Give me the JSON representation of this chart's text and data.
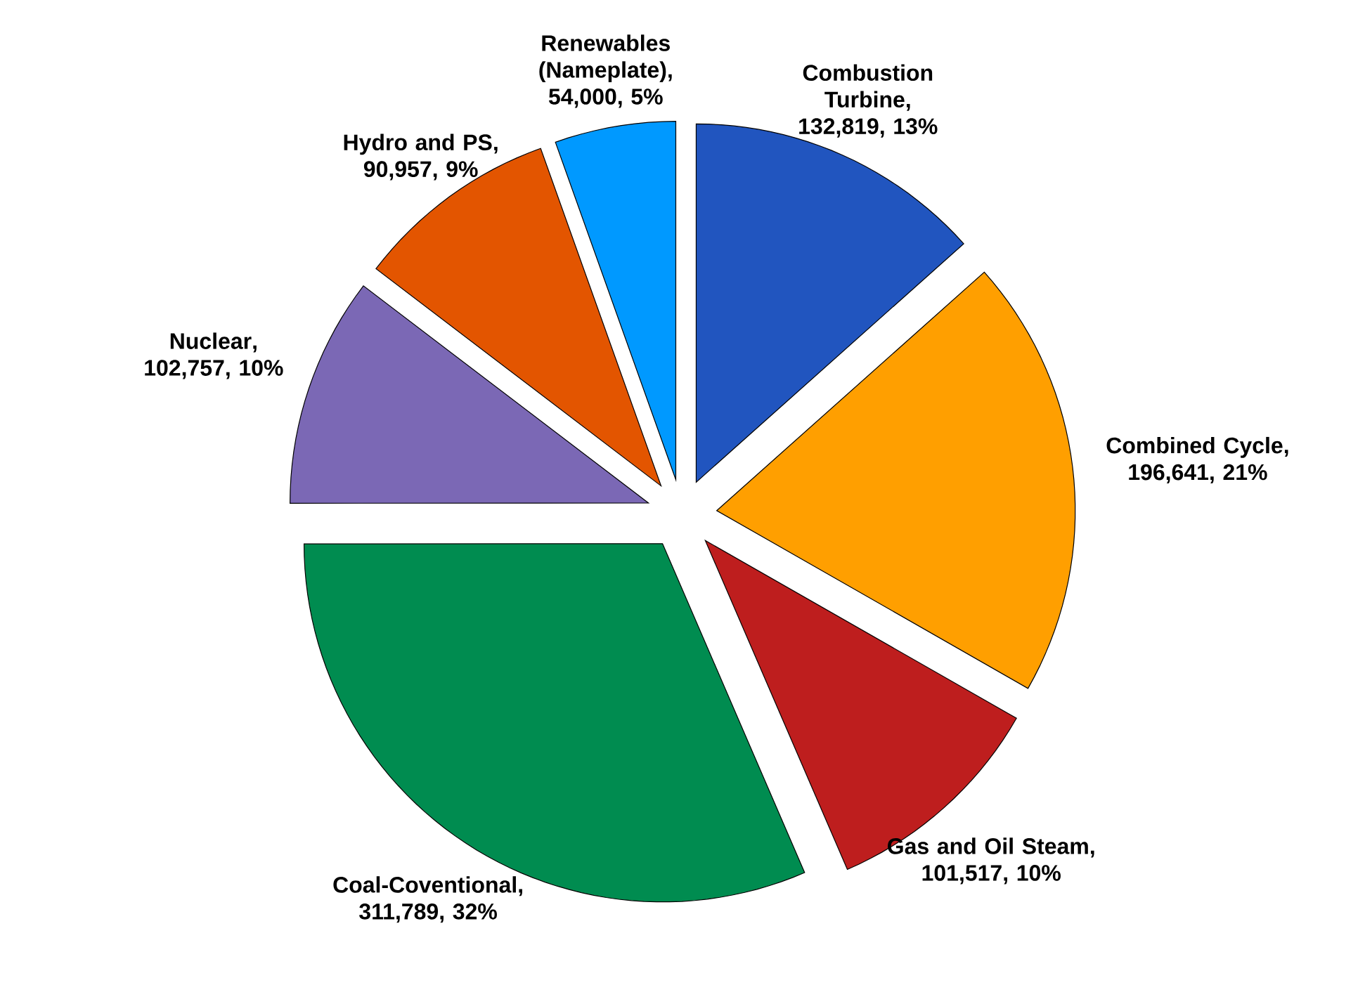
{
  "chart_data": {
    "type": "pie",
    "categories": [
      "Combustion Turbine",
      "Combined Cycle",
      "Gas and Oil Steam",
      "Coal-Coventional",
      "Nuclear",
      "Hydro and PS",
      "Renewables (Nameplate)"
    ],
    "values": [
      132819,
      196641,
      101517,
      311789,
      102757,
      90957,
      54000
    ],
    "value_labels": [
      ", 132,819, 13%",
      ", 196,641, 21%",
      ", 101,517, 10%",
      ", 311,789, 32%",
      ", 102,757, 10%",
      ", 90,957, 9%",
      ", 54,000, 5%"
    ],
    "colors": [
      "#2155bf",
      "#ff9f00",
      "#be1e1e",
      "#008c50",
      "#7b68b5",
      "#e35500",
      "#0099ff"
    ]
  }
}
